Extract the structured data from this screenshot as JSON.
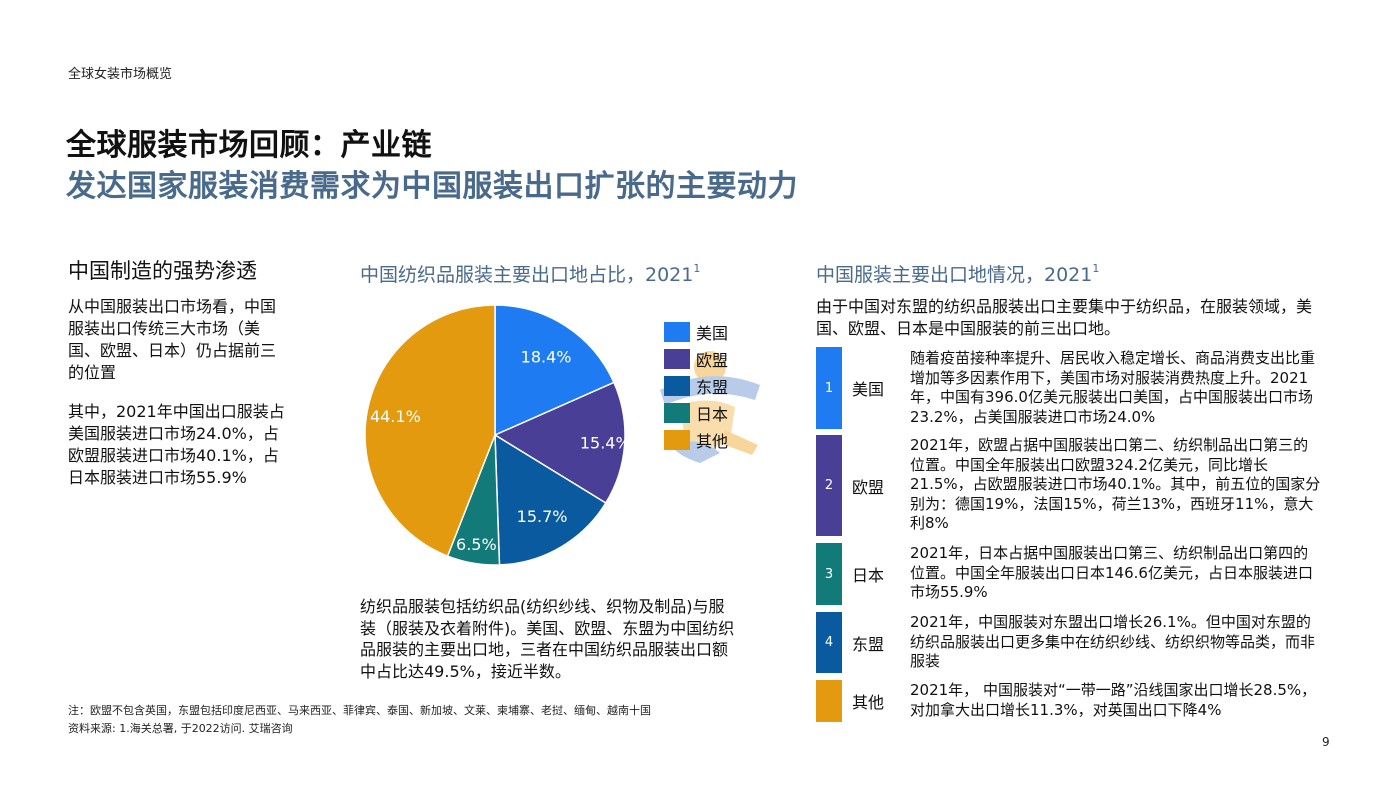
{
  "header": {
    "section_label": "全球女装市场概览",
    "title_main": "全球服装市场回顾：产业链",
    "title_sub": "发达国家服装消费需求为中国服装出口扩张的主要动力"
  },
  "left": {
    "heading": "中国制造的强势渗透",
    "para1": "从中国服装出口市场看，中国服装出口传统三大市场（美国、欧盟、日本）仍占据前三的位置",
    "para2": "其中，2021年中国出口服装占美国服装进口市场24.0%，占欧盟服装进口市场40.1%，占日本服装进口市场55.9%"
  },
  "chart_data": {
    "type": "pie",
    "title": "中国纺织品服装主要出口地占比，2021",
    "title_sup": "1",
    "categories": [
      "美国",
      "欧盟",
      "东盟",
      "日本",
      "其他"
    ],
    "values": [
      18.4,
      15.4,
      15.7,
      6.5,
      44.1
    ],
    "labels": [
      "18.4%",
      "15.4%",
      "15.7%",
      "6.5%",
      "44.1%"
    ],
    "colors": [
      "#1f7bf2",
      "#4a3f96",
      "#0a5aa0",
      "#127a78",
      "#e39a0f"
    ],
    "legend_position": "right"
  },
  "chart_note": "纺织品服装包括纺织品(纺织纱线、织物及制品)与服装（服装及衣着附件)。美国、欧盟、东盟为中国纺织品服装的主要出口地，三者在中国纺织品服装出口额中占比达49.5%，接近半数。",
  "table": {
    "title": "中国服装主要出口地情况，2021",
    "title_sup": "1",
    "intro": "由于中国对东盟的纺织品服装出口主要集中于纺织品，在服装领域，美国、欧盟、日本是中国服装的前三出口地。",
    "rows": [
      {
        "num": "1",
        "name": "美国",
        "color": "#1f7bf2",
        "text": "随着疫苗接种率提升、居民收入稳定增长、商品消费支出比重增加等多因素作用下，美国市场对服装消费热度上升。2021年，中国有396.0亿美元服装出口美国，占中国服装出口市场23.2%，占美国服装进口市场24.0%"
      },
      {
        "num": "2",
        "name": "欧盟",
        "color": "#4a3f96",
        "text": "2021年，欧盟占据中国服装出口第二、纺织制品出口第三的位置。中国全年服装出口欧盟324.2亿美元，同比增长21.5%，占欧盟服装进口市场40.1%。其中，前五位的国家分别为：德国19%，法国15%，荷兰13%，西班牙11%，意大利8%"
      },
      {
        "num": "3",
        "name": "日本",
        "color": "#127a78",
        "text": "2021年，日本占据中国服装出口第三、纺织制品出口第四的位置。中国全年服装出口日本146.6亿美元，占日本服装进口市场55.9%"
      },
      {
        "num": "4",
        "name": "东盟",
        "color": "#0a5aa0",
        "text": "2021年，中国服装对东盟出口增长26.1%。但中国对东盟的纺织品服装出口更多集中在纺织纱线、纺织织物等品类，而非服装"
      },
      {
        "num": "",
        "name": "其他",
        "color": "#e39a0f",
        "text": "2021年， 中国服装对“一带一路”沿线国家出口增长28.5%，对加拿大出口增长11.3%，对英国出口下降4%"
      }
    ]
  },
  "footer": {
    "footnote": "注：欧盟不包含英国，东盟包括印度尼西亚、马来西亚、菲律宾、泰国、新加坡、文莱、柬埔寨、老挝、缅甸、越南十国",
    "source": "资料来源: 1.海关总署, 于2022访问. 艾瑞咨询",
    "page_number": "9"
  }
}
